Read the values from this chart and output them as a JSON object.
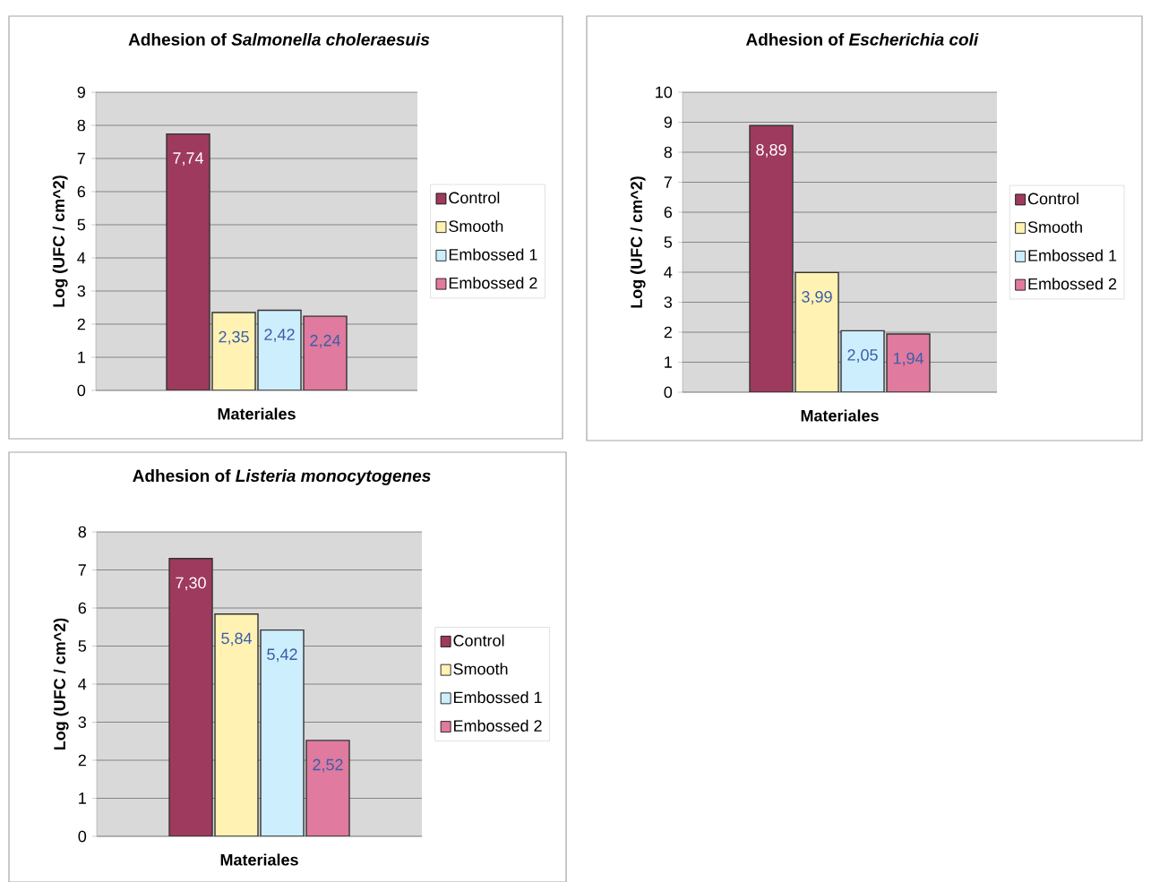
{
  "chart_data": [
    {
      "type": "bar",
      "title": "Adhesion of *Salmonella choleraesuis*",
      "xlabel": "Materiales",
      "ylabel": "Log (UFC / cm^2)",
      "categories": [
        null
      ],
      "ylim": [
        0,
        9
      ],
      "yticks": [
        0,
        1,
        2,
        3,
        4,
        5,
        6,
        7,
        8,
        9
      ],
      "grid": "y",
      "legend": "right",
      "series": [
        {
          "name": "Control",
          "color": "#9e3a5e",
          "values": [
            7.74
          ],
          "value_labels": [
            "7,74"
          ]
        },
        {
          "name": "Smooth",
          "color": "#fff2b3",
          "values": [
            2.35
          ],
          "value_labels": [
            "2,35"
          ]
        },
        {
          "name": "Embossed 1",
          "color": "#cdeefc",
          "values": [
            2.42
          ],
          "value_labels": [
            "2,42"
          ]
        },
        {
          "name": "Embossed 2",
          "color": "#e07a9f",
          "values": [
            2.24
          ],
          "value_labels": [
            "2,24"
          ]
        }
      ]
    },
    {
      "type": "bar",
      "title": "Adhesion of *Escherichia coli*",
      "xlabel": "Materiales",
      "ylabel": "Log (UFC / cm^2)",
      "categories": [
        null
      ],
      "ylim": [
        0,
        10
      ],
      "yticks": [
        0,
        1,
        2,
        3,
        4,
        5,
        6,
        7,
        8,
        9,
        10
      ],
      "grid": "y",
      "legend": "right",
      "series": [
        {
          "name": "Control",
          "color": "#9e3a5e",
          "values": [
            8.89
          ],
          "value_labels": [
            "8,89"
          ]
        },
        {
          "name": "Smooth",
          "color": "#fff2b3",
          "values": [
            3.99
          ],
          "value_labels": [
            "3,99"
          ]
        },
        {
          "name": "Embossed 1",
          "color": "#cdeefc",
          "values": [
            2.05
          ],
          "value_labels": [
            "2,05"
          ]
        },
        {
          "name": "Embossed 2",
          "color": "#e07a9f",
          "values": [
            1.94
          ],
          "value_labels": [
            "1,94"
          ]
        }
      ]
    },
    {
      "type": "bar",
      "title": "Adhesion of *Listeria monocytogenes*",
      "xlabel": "Materiales",
      "ylabel": "Log (UFC / cm^2)",
      "categories": [
        null
      ],
      "ylim": [
        0,
        8
      ],
      "yticks": [
        0,
        1,
        2,
        3,
        4,
        5,
        6,
        7,
        8
      ],
      "grid": "y",
      "legend": "right",
      "series": [
        {
          "name": "Control",
          "color": "#9e3a5e",
          "values": [
            7.3
          ],
          "value_labels": [
            "7,30"
          ]
        },
        {
          "name": "Smooth",
          "color": "#fff2b3",
          "values": [
            5.84
          ],
          "value_labels": [
            "5,84"
          ]
        },
        {
          "name": "Embossed 1",
          "color": "#cdeefc",
          "values": [
            5.42
          ],
          "value_labels": [
            "5,42"
          ]
        },
        {
          "name": "Embossed 2",
          "color": "#e07a9f",
          "values": [
            2.52
          ],
          "value_labels": [
            "2,52"
          ]
        }
      ]
    }
  ]
}
